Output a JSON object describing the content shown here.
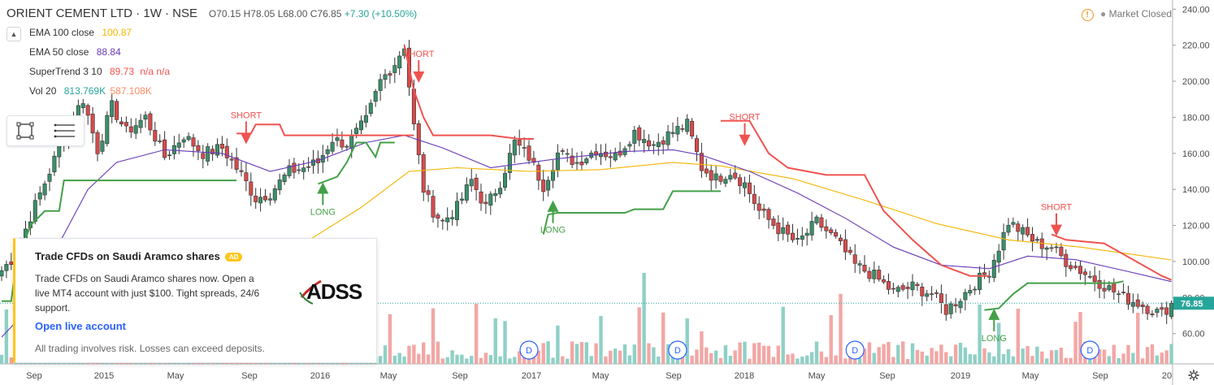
{
  "header": {
    "symbol": "ORIENT CEMENT LTD · 1W · NSE",
    "open": "O70.15",
    "high": "H78.05",
    "low": "L68.00",
    "close": "C76.85",
    "change": "+7.30 (+10.50%)"
  },
  "market_status": "Market Closed",
  "indicators": [
    {
      "name": "EMA 100 close",
      "value": "100.87",
      "color": "#f4b400"
    },
    {
      "name": "EMA 50 close",
      "value": "88.84",
      "color": "#673ab7"
    },
    {
      "name": "SuperTrend 3 10",
      "value": "89.73",
      "extra": "n/a n/a",
      "color": "#ef5350"
    },
    {
      "name": "Vol 20",
      "value": "813.769K",
      "extra": "587.108K",
      "color": "#26a69a"
    }
  ],
  "ad": {
    "title": "Trade CFDs on Saudi Aramco shares",
    "badge": "AD",
    "body": "Trade CFDs on Saudi Aramco shares now. Open a live MT4 account with just $100. Tight spreads, 24/6 support.",
    "logo_text": "ADSS",
    "link": "Open live account",
    "disclaimer": "All trading involves risk. Losses can exceed deposits."
  },
  "chart_data": {
    "type": "candlestick",
    "interval": "1W",
    "y_axis": {
      "ticks": [
        60,
        80,
        100,
        120,
        140,
        160,
        180,
        200,
        220,
        240
      ],
      "range": [
        46,
        241
      ],
      "position": "right"
    },
    "x_axis": {
      "labels": [
        "Sep",
        "2015",
        "May",
        "Sep",
        "2016",
        "May",
        "Sep",
        "2017",
        "May",
        "Sep",
        "2018",
        "May",
        "Sep",
        "2019",
        "May",
        "Sep",
        "20"
      ]
    },
    "price_path": [
      [
        0,
        95
      ],
      [
        3,
        104
      ],
      [
        6,
        125
      ],
      [
        10,
        150
      ],
      [
        14,
        176
      ],
      [
        17,
        190
      ],
      [
        20,
        162
      ],
      [
        23,
        186
      ],
      [
        26,
        172
      ],
      [
        30,
        180
      ],
      [
        34,
        158
      ],
      [
        38,
        170
      ],
      [
        42,
        160
      ],
      [
        46,
        163
      ],
      [
        50,
        148
      ],
      [
        53,
        135
      ],
      [
        56,
        138
      ],
      [
        60,
        150
      ],
      [
        63,
        152
      ],
      [
        66,
        155
      ],
      [
        69,
        168
      ],
      [
        72,
        165
      ],
      [
        76,
        178
      ],
      [
        79,
        200
      ],
      [
        82,
        210
      ],
      [
        84,
        220
      ],
      [
        86,
        175
      ],
      [
        88,
        140
      ],
      [
        90,
        128
      ],
      [
        92,
        122
      ],
      [
        95,
        130
      ],
      [
        98,
        145
      ],
      [
        101,
        130
      ],
      [
        104,
        144
      ],
      [
        107,
        166
      ],
      [
        110,
        158
      ],
      [
        113,
        142
      ],
      [
        116,
        160
      ],
      [
        120,
        155
      ],
      [
        124,
        162
      ],
      [
        128,
        158
      ],
      [
        132,
        172
      ],
      [
        136,
        165
      ],
      [
        140,
        172
      ],
      [
        143,
        176
      ],
      [
        146,
        152
      ],
      [
        149,
        146
      ],
      [
        152,
        150
      ],
      [
        155,
        143
      ],
      [
        158,
        128
      ],
      [
        162,
        118
      ],
      [
        166,
        110
      ],
      [
        170,
        122
      ],
      [
        174,
        112
      ],
      [
        178,
        98
      ],
      [
        182,
        92
      ],
      [
        186,
        83
      ],
      [
        190,
        86
      ],
      [
        194,
        82
      ],
      [
        197,
        73
      ],
      [
        200,
        80
      ],
      [
        203,
        88
      ],
      [
        206,
        95
      ],
      [
        208,
        108
      ],
      [
        210,
        122
      ],
      [
        213,
        116
      ],
      [
        216,
        110
      ],
      [
        219,
        108
      ],
      [
        222,
        100
      ],
      [
        225,
        95
      ],
      [
        228,
        90
      ],
      [
        231,
        85
      ],
      [
        234,
        80
      ],
      [
        237,
        77
      ],
      [
        240,
        73
      ],
      [
        242,
        71
      ],
      [
        244,
        76.85
      ]
    ],
    "series": [
      {
        "name": "EMA 100 close",
        "color": "#f4b400",
        "points": [
          [
            48,
            86
          ],
          [
            60,
            105
          ],
          [
            75,
            130
          ],
          [
            85,
            150
          ],
          [
            95,
            152
          ],
          [
            110,
            150
          ],
          [
            125,
            151
          ],
          [
            140,
            155
          ],
          [
            150,
            153
          ],
          [
            165,
            146
          ],
          [
            180,
            134
          ],
          [
            195,
            121
          ],
          [
            210,
            112
          ],
          [
            225,
            108
          ],
          [
            244,
            100.87
          ]
        ]
      },
      {
        "name": "EMA 50 close",
        "color": "#673ab7",
        "points": [
          [
            0,
            58
          ],
          [
            6,
            75
          ],
          [
            12,
            110
          ],
          [
            18,
            140
          ],
          [
            24,
            155
          ],
          [
            34,
            162
          ],
          [
            46,
            160
          ],
          [
            56,
            150
          ],
          [
            66,
            156
          ],
          [
            76,
            166
          ],
          [
            84,
            170
          ],
          [
            92,
            163
          ],
          [
            102,
            152
          ],
          [
            116,
            157
          ],
          [
            130,
            161
          ],
          [
            140,
            162
          ],
          [
            146,
            159
          ],
          [
            156,
            150
          ],
          [
            166,
            138
          ],
          [
            176,
            124
          ],
          [
            186,
            108
          ],
          [
            196,
            98
          ],
          [
            206,
            96
          ],
          [
            214,
            103
          ],
          [
            224,
            101
          ],
          [
            234,
            95
          ],
          [
            244,
            88.84
          ]
        ]
      },
      {
        "name": "SuperTrend 3 10",
        "color": "#ef5350",
        "segments": [
          [
            [
              49,
              171
            ],
            [
              52,
              171
            ],
            [
              53,
              176
            ],
            [
              58,
              176
            ],
            [
              59,
              170
            ],
            [
              86,
              170
            ]
          ],
          [
            [
              84,
              220
            ],
            [
              86,
              195
            ],
            [
              88,
              180
            ],
            [
              90,
              170
            ],
            [
              102,
              170
            ],
            [
              108,
              168
            ],
            [
              111,
              168
            ]
          ],
          [
            [
              150,
              178
            ],
            [
              156,
              178
            ],
            [
              160,
              160
            ],
            [
              164,
              152
            ],
            [
              172,
              148
            ],
            [
              180,
              148
            ],
            [
              184,
              128
            ],
            [
              190,
              112
            ],
            [
              196,
              98
            ],
            [
              202,
              92
            ],
            [
              206,
              92
            ]
          ],
          [
            [
              219,
              115
            ],
            [
              222,
              112
            ],
            [
              230,
              110
            ],
            [
              238,
              98
            ],
            [
              242,
              92
            ],
            [
              244,
              89.73
            ]
          ]
        ]
      },
      {
        "name": "SuperTrend up",
        "color": "#43a047",
        "segments": [
          [
            [
              0,
              78
            ],
            [
              2,
              78
            ],
            [
              3,
              98
            ],
            [
              6,
              120
            ],
            [
              9,
              128
            ],
            [
              12,
              128
            ],
            [
              13,
              145
            ],
            [
              49,
              145
            ]
          ],
          [
            [
              66,
              143
            ],
            [
              70,
              147
            ],
            [
              72,
              155
            ],
            [
              74,
              166
            ],
            [
              76,
              166
            ],
            [
              78,
              158
            ],
            [
              79,
              166
            ],
            [
              82,
              166
            ]
          ],
          [
            [
              113,
              115
            ],
            [
              114,
              126
            ],
            [
              116,
              127
            ],
            [
              130,
              127
            ],
            [
              132,
              129
            ],
            [
              138,
              129
            ],
            [
              140,
              139
            ],
            [
              150,
              139
            ]
          ],
          [
            [
              205,
              73
            ],
            [
              208,
              74
            ],
            [
              211,
              82
            ],
            [
              214,
              88
            ],
            [
              232,
              88
            ],
            [
              234,
              89
            ]
          ]
        ]
      }
    ],
    "signals": [
      {
        "label": "SHORT",
        "x": 51,
        "y": 166,
        "dir": "down"
      },
      {
        "label": "LONG",
        "x": 67,
        "y": 143,
        "dir": "up"
      },
      {
        "label": "SHORT",
        "x": 87,
        "y": 200,
        "dir": "down"
      },
      {
        "label": "LONG",
        "x": 115,
        "y": 133,
        "dir": "up"
      },
      {
        "label": "SHORT",
        "x": 155,
        "y": 165,
        "dir": "down"
      },
      {
        "label": "LONG",
        "x": 207,
        "y": 73,
        "dir": "up"
      },
      {
        "label": "SHORT",
        "x": 220,
        "y": 115,
        "dir": "down"
      }
    ],
    "dividend_marks": [
      {
        "x": 70,
        "label": "D"
      },
      {
        "x": 110,
        "label": "D"
      },
      {
        "x": 141,
        "label": "D"
      },
      {
        "x": 178,
        "label": "D"
      },
      {
        "x": 227,
        "label": "D"
      }
    ],
    "last_price": "76.85",
    "colors": {
      "up": "#3a8f6a",
      "down": "#d84a4a",
      "vol_up": "#8fd0c6",
      "vol_down": "#f2a7a5"
    }
  }
}
